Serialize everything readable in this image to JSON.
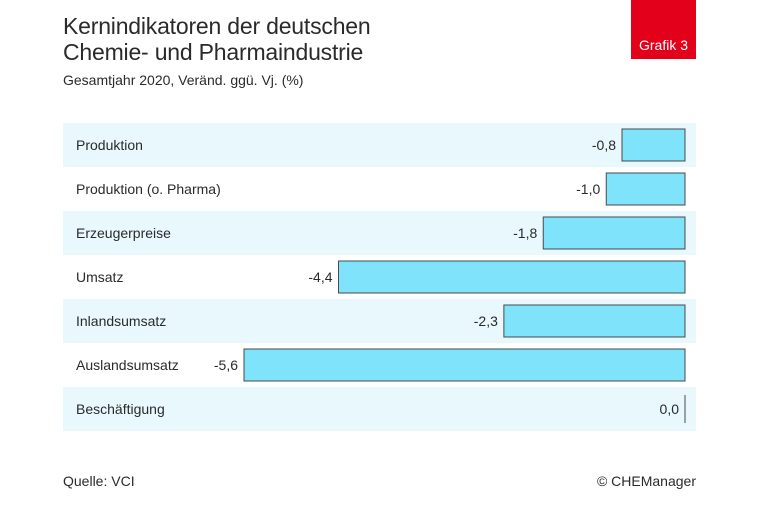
{
  "header": {
    "title_line1": "Kernindikatoren der deutschen",
    "title_line2": "Chemie- und Pharmaindustrie",
    "badge": "Grafik 3"
  },
  "footer": {
    "source": "Quelle: VCI",
    "copyright": "© CHEManager"
  },
  "colors": {
    "bar_fill": "#7fe3fb",
    "bar_stroke": "#4a4a4a",
    "stripe": "#e8f8fd",
    "badge": "#e2001a"
  },
  "chart_data": {
    "type": "bar",
    "orientation": "horizontal",
    "title": "Kernindikatoren der deutschen Chemie- und Pharmaindustrie",
    "subtitle": "Gesamtjahr 2020, Veränd. ggü. Vj. (%)",
    "categories": [
      "Produktion",
      "Produktion (o. Pharma)",
      "Erzeugerpreise",
      "Umsatz",
      "Inlandsumsatz",
      "Auslandsumsatz",
      "Beschäftigung"
    ],
    "values": [
      -0.8,
      -1.0,
      -1.8,
      -4.4,
      -2.3,
      -5.6,
      0.0
    ],
    "value_labels": [
      "-0,8",
      "-1,0",
      "-1,8",
      "-4,4",
      "-2,3",
      "-5,6",
      "0,0"
    ],
    "xlim": [
      -5.6,
      0
    ],
    "grid": false,
    "legend": "none"
  }
}
